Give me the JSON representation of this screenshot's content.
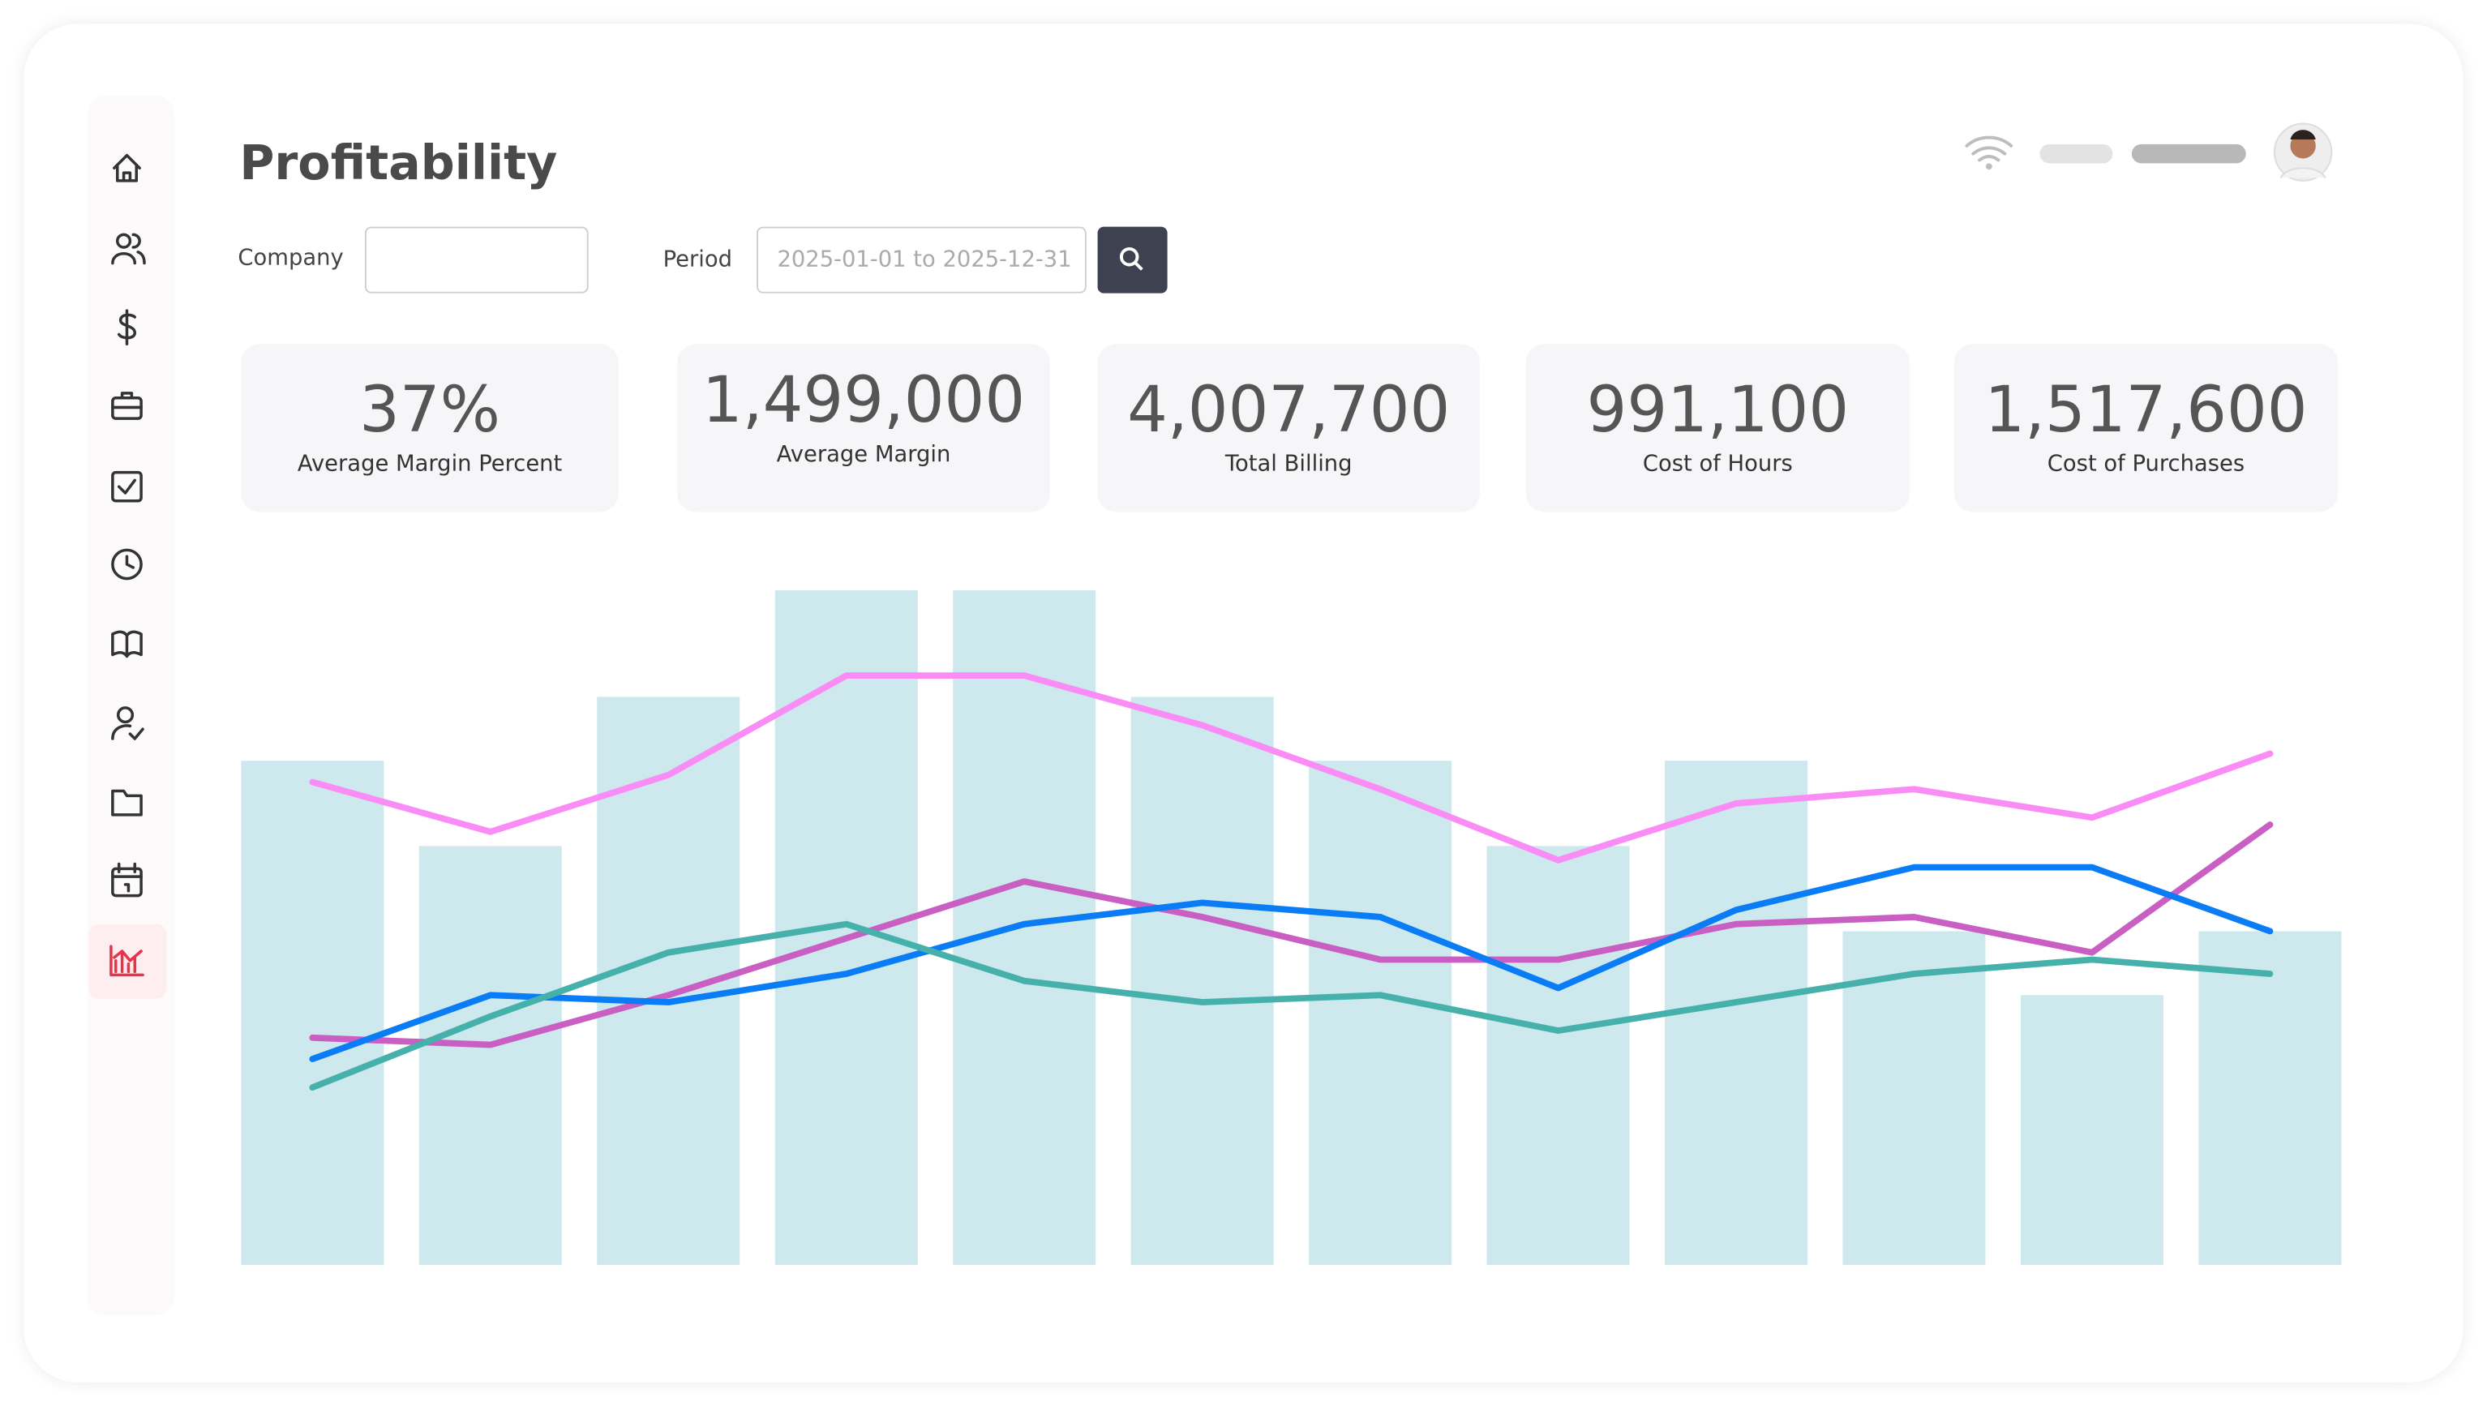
{
  "header": {
    "title": "Profitability"
  },
  "filters": {
    "company_label": "Company",
    "period_label": "Period",
    "period_placeholder": "2025-01-01 to 2025-12-31"
  },
  "kpis": [
    {
      "value": "37%",
      "label": "Average Margin Percent"
    },
    {
      "value": "1,499,000",
      "label": "Average Margin"
    },
    {
      "value": "4,007,700",
      "label": "Total Billing"
    },
    {
      "value": "991,100",
      "label": "Cost of Hours"
    },
    {
      "value": "1,517,600",
      "label": "Cost of Purchases"
    }
  ],
  "chart_data": {
    "type": "bar",
    "categories": [
      null,
      null,
      null,
      null,
      null,
      null,
      null,
      null,
      null,
      null,
      null,
      null
    ],
    "ylim": [
      0,
      100
    ],
    "series": [
      {
        "color": "#cde9ed",
        "values": [
          71,
          59,
          80,
          95,
          95,
          80,
          71,
          59,
          71,
          47,
          38,
          47
        ]
      },
      {
        "type": "line",
        "color": "#f98df5",
        "values": [
          68,
          61,
          69,
          83,
          83,
          76,
          67,
          57,
          65,
          67,
          63,
          72
        ]
      },
      {
        "type": "line",
        "color": "#c95fc3",
        "values": [
          32,
          31,
          38,
          46,
          54,
          49,
          43,
          43,
          48,
          49,
          44,
          62
        ]
      },
      {
        "type": "line",
        "color": "#0a7cf5",
        "values": [
          29,
          38,
          37,
          41,
          48,
          51,
          49,
          39,
          50,
          56,
          56,
          47
        ]
      },
      {
        "type": "line",
        "color": "#45b1aa",
        "values": [
          25,
          35,
          44,
          48,
          40,
          37,
          38,
          33,
          37,
          41,
          43,
          41
        ]
      }
    ]
  }
}
